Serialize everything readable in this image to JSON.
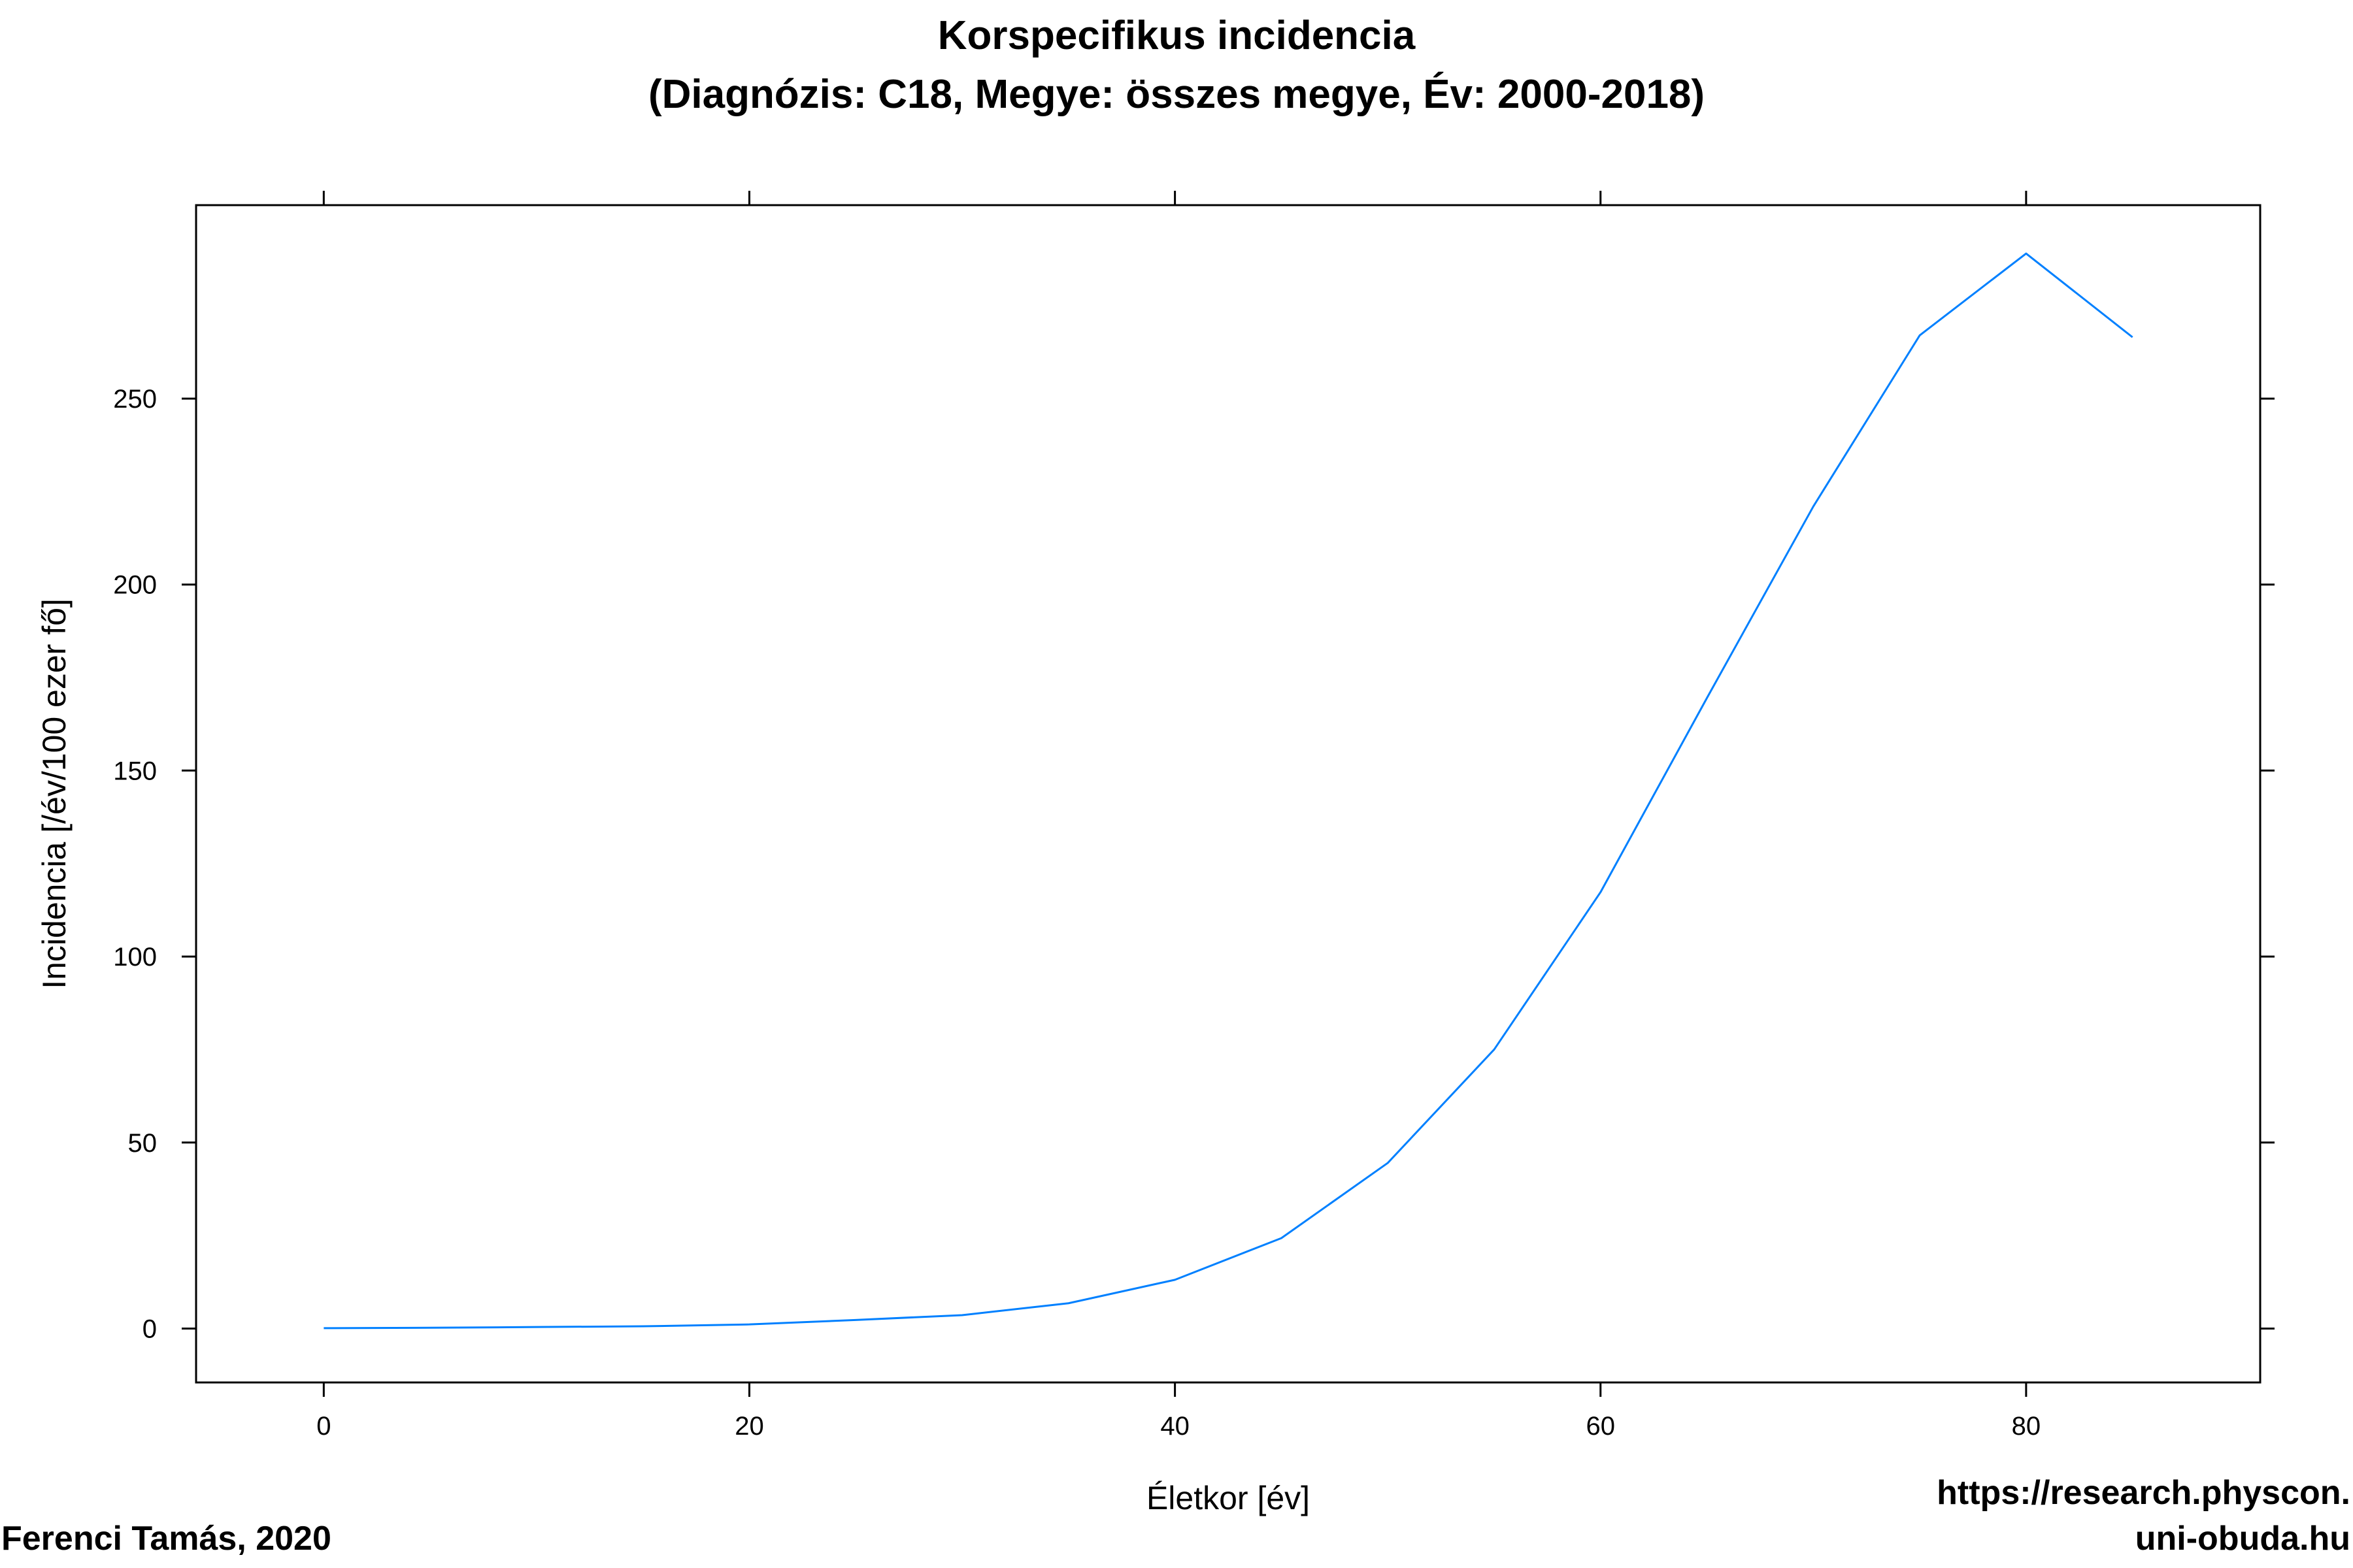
{
  "chart_data": {
    "type": "line",
    "title": [
      "Korspecifikus incidencia",
      "(Diagnózis: C18, Megye: összes megye, Év: 2000-2018)"
    ],
    "xlabel": "Életkor [év]",
    "ylabel": "Incidencia [/év/100 ezer fő]",
    "xlim": [
      -6,
      91
    ],
    "ylim": [
      -14.5,
      302
    ],
    "x_ticks": [
      0,
      20,
      40,
      60,
      80
    ],
    "y_ticks": [
      0,
      50,
      100,
      150,
      200,
      250
    ],
    "grid": false,
    "series": [
      {
        "color": "#0080ff",
        "x": [
          0,
          5,
          10,
          15,
          20,
          25,
          30,
          35,
          40,
          45,
          50,
          55,
          60,
          65,
          70,
          75,
          80,
          85
        ],
        "y": [
          0.1,
          0.2,
          0.4,
          0.6,
          1.1,
          2.3,
          3.6,
          6.8,
          13.1,
          24.3,
          44.5,
          75.0,
          117.3,
          169.5,
          221.0,
          267.0,
          289.0,
          266.5
        ]
      }
    ]
  },
  "credits": {
    "author": "Ferenci Tamás, 2020",
    "url_line1": "https://research.physcon.",
    "url_line2": "uni-obuda.hu"
  }
}
